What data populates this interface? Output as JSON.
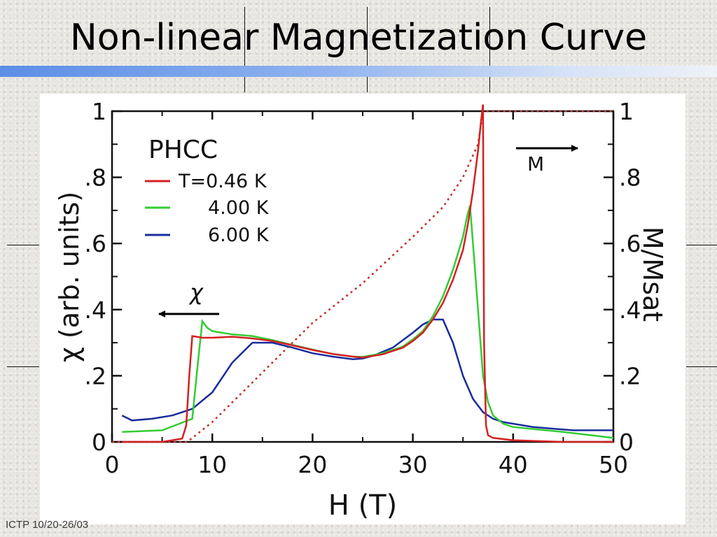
{
  "slide": {
    "title": "Non-linear Magnetization Curve",
    "footer": "ICTP 10/20-26/03"
  },
  "chart_data": {
    "type": "line",
    "legend_title": "PHCC",
    "xlabel": "H (T)",
    "ylabel_left": "χ (arb. units)",
    "ylabel_right": "M/Msat",
    "xlim": [
      0,
      50
    ],
    "ylim": [
      0,
      1
    ],
    "x_ticks": [
      "0",
      "10",
      "20",
      "30",
      "40",
      "50"
    ],
    "y_ticks_left": [
      "0",
      ".2",
      ".4",
      ".6",
      ".8",
      "1"
    ],
    "y_ticks_right": [
      "0",
      ".2",
      ".4",
      ".6",
      ".8",
      "1"
    ],
    "grid": false,
    "legend_placement": "top-left",
    "annotations": {
      "chi_arrow_label": "χ",
      "m_arrow_label": "M"
    },
    "colors": {
      "T046": "#d42020",
      "T400": "#33cc33",
      "T600": "#1a2c9c",
      "M": "#c0302c"
    },
    "series": [
      {
        "name": "T=0.46 K",
        "legend_label": "T=0.46 K",
        "axis": "left",
        "x": [
          1,
          5,
          7,
          7.4,
          7.7,
          8,
          9,
          10,
          12,
          14,
          16,
          18,
          20,
          22,
          24,
          25,
          27,
          29,
          30,
          31,
          32,
          33,
          34,
          35,
          35.5,
          36,
          36.5,
          36.8,
          37,
          37.1,
          37.3,
          37.5,
          38,
          40,
          45,
          50
        ],
        "y": [
          0,
          0,
          0.01,
          0.05,
          0.2,
          0.32,
          0.315,
          0.315,
          0.318,
          0.313,
          0.305,
          0.292,
          0.278,
          0.266,
          0.258,
          0.255,
          0.265,
          0.285,
          0.305,
          0.33,
          0.37,
          0.42,
          0.49,
          0.58,
          0.66,
          0.76,
          0.88,
          0.97,
          1.02,
          0.3,
          0.05,
          0.02,
          0.012,
          0.005,
          0,
          0
        ]
      },
      {
        "name": "4.00 K",
        "legend_label": "4.00 K",
        "axis": "left",
        "x": [
          1,
          5,
          8,
          8.5,
          9,
          9.5,
          10,
          12,
          14,
          16,
          18,
          20,
          22,
          24,
          25,
          27,
          29,
          30,
          31,
          32,
          33,
          34,
          35,
          35.4,
          35.7,
          36,
          36.5,
          37,
          37.5,
          38,
          39,
          40,
          45,
          50
        ],
        "y": [
          0.03,
          0.035,
          0.07,
          0.22,
          0.365,
          0.345,
          0.335,
          0.325,
          0.32,
          0.308,
          0.293,
          0.279,
          0.266,
          0.258,
          0.257,
          0.268,
          0.288,
          0.31,
          0.335,
          0.38,
          0.44,
          0.52,
          0.62,
          0.68,
          0.715,
          0.6,
          0.4,
          0.2,
          0.12,
          0.08,
          0.055,
          0.045,
          0.03,
          0.012
        ]
      },
      {
        "name": "6.00 K",
        "legend_label": "6.00 K",
        "axis": "left",
        "x": [
          1,
          2,
          4,
          6,
          8,
          10,
          12,
          14,
          16,
          18,
          20,
          22,
          24,
          25,
          26,
          28,
          30,
          31,
          32,
          33,
          34,
          35,
          36,
          37,
          38,
          39,
          40,
          42,
          44,
          46,
          48,
          50
        ],
        "y": [
          0.08,
          0.065,
          0.07,
          0.08,
          0.1,
          0.15,
          0.24,
          0.3,
          0.3,
          0.285,
          0.268,
          0.258,
          0.25,
          0.252,
          0.26,
          0.285,
          0.33,
          0.355,
          0.37,
          0.37,
          0.3,
          0.2,
          0.13,
          0.09,
          0.07,
          0.06,
          0.055,
          0.045,
          0.04,
          0.035,
          0.035,
          0.035
        ]
      },
      {
        "name": "M",
        "axis": "right",
        "dashed": true,
        "x": [
          0,
          7.5,
          10,
          15,
          20,
          25,
          30,
          33,
          35,
          36.5,
          37,
          50
        ],
        "y": [
          0,
          0,
          0.06,
          0.21,
          0.36,
          0.48,
          0.62,
          0.71,
          0.8,
          0.9,
          1,
          1
        ]
      }
    ]
  }
}
